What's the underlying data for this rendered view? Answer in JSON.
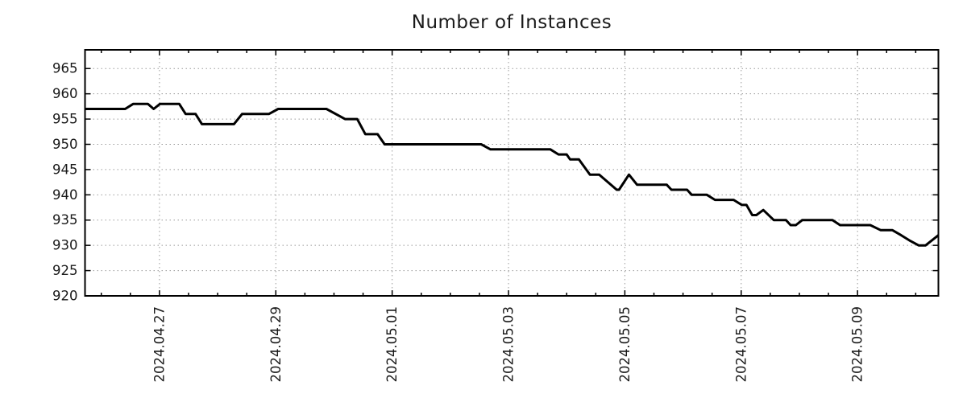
{
  "chart_data": {
    "type": "line",
    "title": "Number of Instances",
    "legend": "none",
    "grid": "dotted",
    "colors": {
      "line": "#000000",
      "grid": "#9a9a9a",
      "axis": "#000000",
      "text": "#1a1a1a"
    },
    "x_axis": {
      "tick_labels": [
        "2024.04.27",
        "2024.04.29",
        "2024.05.01",
        "2024.05.03",
        "2024.05.05",
        "2024.05.07",
        "2024.05.09"
      ],
      "tick_positions_days": [
        0,
        2,
        4,
        6,
        8,
        10,
        12
      ],
      "domain_days": [
        -1.28,
        13.39
      ],
      "minor_tick_interval_days": 0.5,
      "label_rotation_deg": -90
    },
    "y_axis": {
      "ticks": [
        920,
        925,
        930,
        935,
        940,
        945,
        950,
        955,
        960,
        965
      ],
      "range": [
        920,
        968.7
      ]
    },
    "series": [
      {
        "name": "instances",
        "color": "#000000",
        "points": [
          [
            -1.28,
            957
          ],
          [
            -0.59,
            957
          ],
          [
            -0.45,
            958
          ],
          [
            -0.2,
            958
          ],
          [
            -0.1,
            957
          ],
          [
            0.01,
            958
          ],
          [
            0.34,
            958
          ],
          [
            0.45,
            956
          ],
          [
            0.62,
            956
          ],
          [
            0.73,
            954
          ],
          [
            1.28,
            954
          ],
          [
            1.42,
            956
          ],
          [
            1.88,
            956
          ],
          [
            2.04,
            957
          ],
          [
            2.87,
            957
          ],
          [
            3.19,
            955
          ],
          [
            3.4,
            955
          ],
          [
            3.54,
            952
          ],
          [
            3.75,
            952
          ],
          [
            3.87,
            950
          ],
          [
            5.53,
            950
          ],
          [
            5.69,
            949
          ],
          [
            6.72,
            949
          ],
          [
            6.86,
            948
          ],
          [
            7.0,
            948
          ],
          [
            7.06,
            947
          ],
          [
            7.21,
            947
          ],
          [
            7.4,
            944
          ],
          [
            7.56,
            944
          ],
          [
            7.86,
            941
          ],
          [
            7.9,
            941
          ],
          [
            8.07,
            944
          ],
          [
            8.21,
            942
          ],
          [
            8.72,
            942
          ],
          [
            8.8,
            941
          ],
          [
            9.07,
            941
          ],
          [
            9.15,
            940
          ],
          [
            9.41,
            940
          ],
          [
            9.55,
            939
          ],
          [
            9.87,
            939
          ],
          [
            10.01,
            938
          ],
          [
            10.09,
            938
          ],
          [
            10.19,
            936
          ],
          [
            10.26,
            936
          ],
          [
            10.38,
            937
          ],
          [
            10.56,
            935
          ],
          [
            10.77,
            935
          ],
          [
            10.85,
            934
          ],
          [
            10.94,
            934
          ],
          [
            11.05,
            935
          ],
          [
            11.57,
            935
          ],
          [
            11.7,
            934
          ],
          [
            12.22,
            934
          ],
          [
            12.4,
            933
          ],
          [
            12.6,
            933
          ],
          [
            12.75,
            932
          ],
          [
            12.89,
            931
          ],
          [
            13.05,
            930
          ],
          [
            13.17,
            930
          ],
          [
            13.39,
            932
          ]
        ]
      }
    ]
  }
}
